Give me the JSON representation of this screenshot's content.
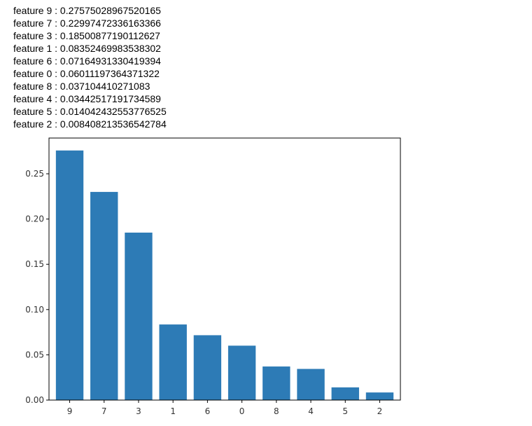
{
  "output_lines": [
    "feature 9 : 0.27575028967520165",
    "feature 7 : 0.22997472336163366",
    "feature 3 : 0.18500877190112627",
    "feature 1 : 0.08352469983538302",
    "feature 6 : 0.07164931330419394",
    "feature 0 : 0.06011197364371322",
    "feature 8 : 0.037104410271083",
    "feature 4 : 0.03442517191734589",
    "feature 5 : 0.014042432553776525",
    "feature 2 : 0.008408213536542784"
  ],
  "chart_data": {
    "type": "bar",
    "categories": [
      "9",
      "7",
      "3",
      "1",
      "6",
      "0",
      "8",
      "4",
      "5",
      "2"
    ],
    "values": [
      0.27575028967520165,
      0.22997472336163366,
      0.18500877190112627,
      0.08352469983538302,
      0.07164931330419394,
      0.06011197364371322,
      0.037104410271083,
      0.03442517191734589,
      0.014042432553776525,
      0.008408213536542784
    ],
    "yticks": [
      "0.00",
      "0.05",
      "0.10",
      "0.15",
      "0.20",
      "0.25"
    ],
    "ylim": [
      0,
      0.2895
    ],
    "title": "",
    "xlabel": "",
    "ylabel": "",
    "bar_color": "#2d7bb6",
    "axis_color": "#000000"
  }
}
